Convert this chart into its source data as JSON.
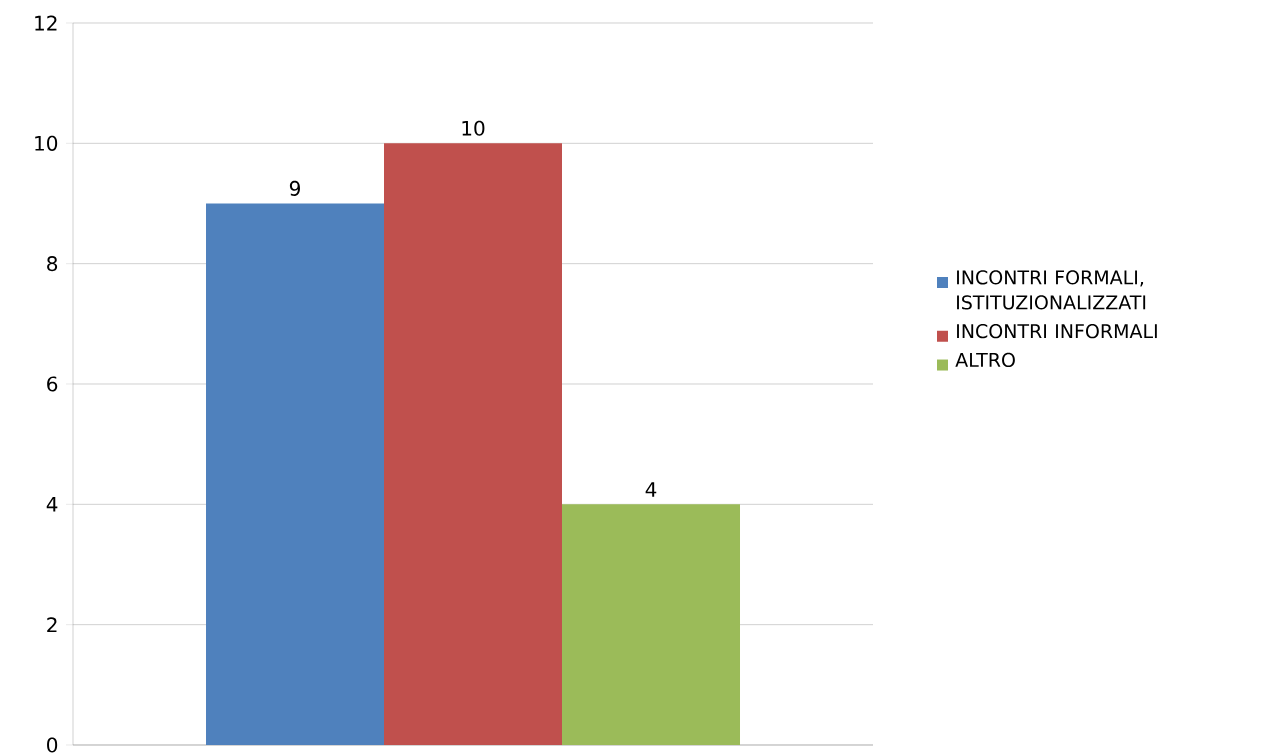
{
  "chart_data": {
    "type": "bar",
    "categories": [
      null
    ],
    "series": [
      {
        "name": "INCONTRI FORMALI, ISTITUZIONALIZZATI",
        "color": "#4f81bd",
        "values": [
          9
        ]
      },
      {
        "name": "INCONTRI INFORMALI",
        "color": "#c0504d",
        "values": [
          10
        ]
      },
      {
        "name": "ALTRO",
        "color": "#9bbb59",
        "values": [
          4
        ]
      }
    ],
    "ylim": [
      0,
      12
    ],
    "yticks": [
      0,
      2,
      4,
      6,
      8,
      10,
      12
    ],
    "grid": "y",
    "legend": "right",
    "data_labels": true
  }
}
